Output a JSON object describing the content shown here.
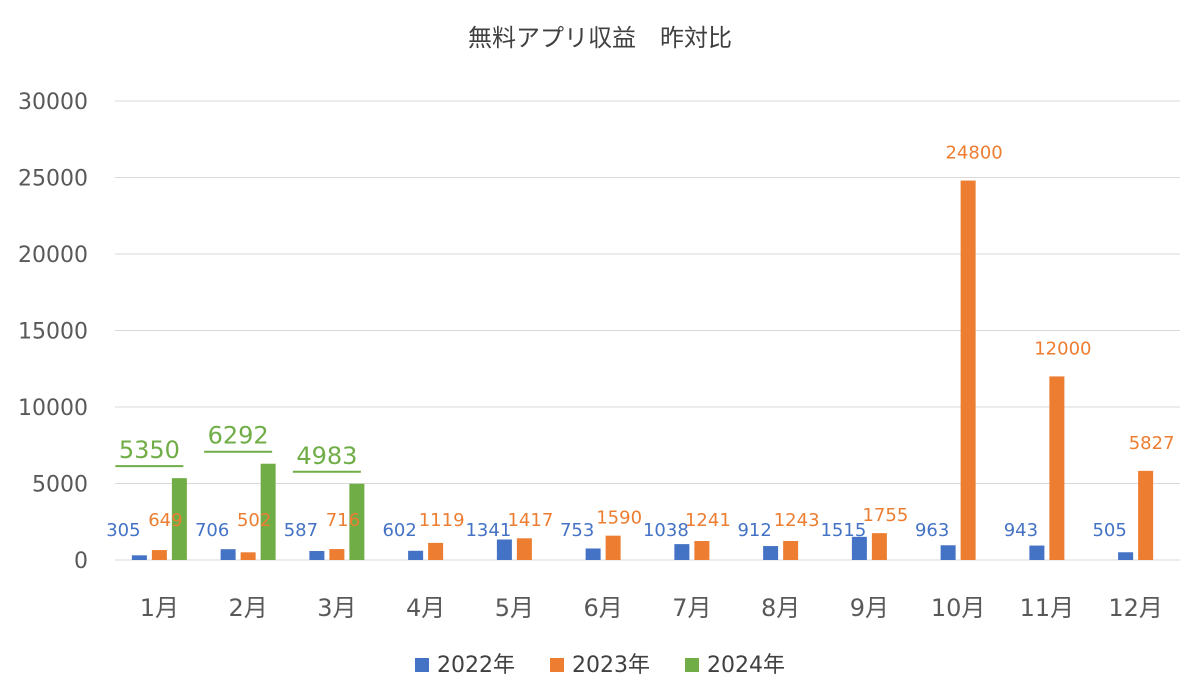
{
  "chart_data": {
    "type": "bar",
    "title": "無料アプリ収益　昨対比",
    "categories": [
      "1月",
      "2月",
      "3月",
      "4月",
      "5月",
      "6月",
      "7月",
      "8月",
      "9月",
      "10月",
      "11月",
      "12月"
    ],
    "ylim": [
      0,
      30000
    ],
    "yticks": [
      "0",
      "5000",
      "10000",
      "15000",
      "20000",
      "25000",
      "30000"
    ],
    "grid": true,
    "legend_position": "bottom",
    "series": [
      {
        "name": "2022年",
        "color": "#4472C4",
        "values": [
          305,
          706,
          587,
          602,
          1341,
          753,
          1038,
          912,
          1515,
          963,
          943,
          505
        ]
      },
      {
        "name": "2023年",
        "color": "#ED7D31",
        "values": [
          649,
          502,
          716,
          1119,
          1417,
          1590,
          1241,
          1243,
          1755,
          24800,
          12000,
          5827
        ]
      },
      {
        "name": "2024年",
        "color": "#70AD47",
        "values": [
          5350,
          6292,
          4983,
          null,
          null,
          null,
          null,
          null,
          null,
          null,
          null,
          null
        ]
      }
    ]
  }
}
